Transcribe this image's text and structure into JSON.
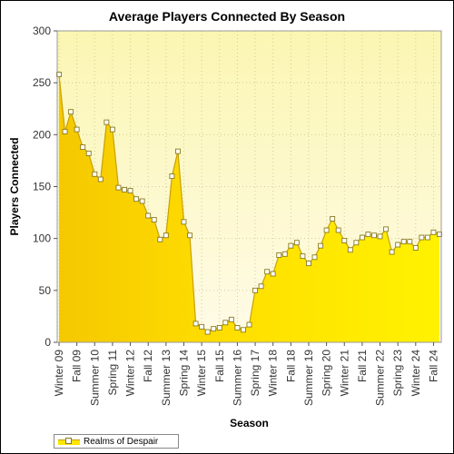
{
  "chart_data": {
    "type": "area",
    "title": "Average Players Connected By Season",
    "xlabel": "Season",
    "ylabel": "Players Connected",
    "ylim": [
      0,
      300
    ],
    "yticks": [
      0,
      50,
      100,
      150,
      200,
      250,
      300
    ],
    "grid": true,
    "legend": "bottom-left",
    "x": [
      "Winter 09",
      "Spring 09",
      "Summer 09",
      "Fall 09",
      "Winter 10",
      "Spring 10",
      "Summer 10",
      "Fall 10",
      "Winter 11",
      "Spring 11",
      "Summer 11",
      "Fall 11",
      "Winter 12",
      "Spring 12",
      "Summer 12",
      "Fall 12",
      "Winter 13",
      "Spring 13",
      "Summer 13",
      "Fall 13",
      "Winter 14",
      "Spring 14",
      "Summer 14",
      "Fall 14",
      "Winter 15",
      "Spring 15",
      "Summer 15",
      "Fall 15",
      "Winter 16",
      "Spring 16",
      "Summer 16",
      "Fall 16",
      "Winter 17",
      "Spring 17",
      "Summer 17",
      "Fall 17",
      "Winter 18",
      "Spring 18",
      "Summer 18",
      "Fall 18",
      "Winter 19",
      "Spring 19",
      "Summer 19",
      "Fall 19",
      "Winter 20",
      "Spring 20",
      "Summer 20",
      "Fall 20",
      "Winter 21",
      "Spring 21",
      "Summer 21",
      "Fall 21",
      "Winter 22",
      "Spring 22",
      "Summer 22",
      "Fall 22",
      "Winter 23",
      "Spring 23",
      "Summer 23",
      "Fall 23",
      "Winter 24",
      "Spring 24",
      "Summer 24",
      "Fall 24",
      "Winter 25"
    ],
    "x_tick_labels": [
      "Winter 09",
      "Fall 09",
      "Summer 10",
      "Spring 11",
      "Winter 12",
      "Fall 12",
      "Summer 13",
      "Spring 14",
      "Winter 15",
      "Fall 15",
      "Summer 16",
      "Spring 17",
      "Winter 18",
      "Fall 18",
      "Summer 19",
      "Spring 20",
      "Winter 21",
      "Fall 21",
      "Summer 22",
      "Spring 23",
      "Winter 24",
      "Fall 24"
    ],
    "series": [
      {
        "name": "Realms of Despair",
        "color": "#ffe600",
        "values": [
          258,
          203,
          222,
          205,
          188,
          182,
          162,
          157,
          212,
          205,
          149,
          147,
          146,
          138,
          136,
          122,
          118,
          99,
          103,
          160,
          184,
          116,
          103,
          18,
          15,
          10,
          13,
          14,
          19,
          22,
          14,
          12,
          17,
          50,
          54,
          68,
          66,
          84,
          85,
          93,
          96,
          83,
          76,
          82,
          93,
          108,
          119,
          108,
          98,
          89,
          96,
          101,
          104,
          103,
          102,
          109,
          87,
          94,
          97,
          97,
          91,
          101,
          101,
          106,
          104
        ]
      }
    ]
  }
}
